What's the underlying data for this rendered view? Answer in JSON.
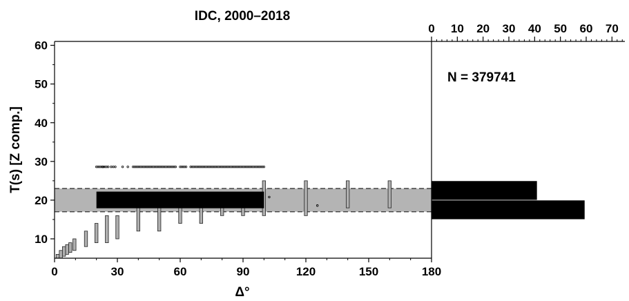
{
  "chart_data": [
    {
      "type": "scatter",
      "title": "IDC, 2000–2018",
      "xlabel": "Δ°",
      "ylabel": "T(s) [Z comp.]",
      "xlim": [
        0,
        180
      ],
      "ylim": [
        5,
        61
      ],
      "xticks": [
        0,
        30,
        60,
        90,
        120,
        150,
        180
      ],
      "yticks": [
        10,
        20,
        30,
        40,
        50,
        60
      ],
      "grid": false,
      "colors": {
        "band": "#b4b4b4",
        "box": "#b0b0b0",
        "dark": "#000000"
      },
      "shaded_band": {
        "y_min": 17,
        "y_max": 23,
        "x_min": 0,
        "x_max": 180
      },
      "dark_box": {
        "x_min": 20,
        "x_max": 100,
        "y_min": 17.9,
        "y_max": 22.2
      },
      "range_boxes": [
        {
          "x": 1.5,
          "y_min": 5,
          "y_max": 6
        },
        {
          "x": 3,
          "y_min": 5,
          "y_max": 7
        },
        {
          "x": 4.5,
          "y_min": 5.5,
          "y_max": 8
        },
        {
          "x": 6,
          "y_min": 6,
          "y_max": 8.5
        },
        {
          "x": 7.5,
          "y_min": 6.5,
          "y_max": 9
        },
        {
          "x": 9.5,
          "y_min": 7,
          "y_max": 10
        },
        {
          "x": 15,
          "y_min": 8,
          "y_max": 12
        },
        {
          "x": 20,
          "y_min": 9,
          "y_max": 14
        },
        {
          "x": 25,
          "y_min": 9,
          "y_max": 16
        },
        {
          "x": 30,
          "y_min": 10,
          "y_max": 16
        },
        {
          "x": 40,
          "y_min": 12,
          "y_max": 18
        },
        {
          "x": 50,
          "y_min": 12,
          "y_max": 20
        },
        {
          "x": 60,
          "y_min": 14,
          "y_max": 20
        },
        {
          "x": 70,
          "y_min": 14,
          "y_max": 22
        },
        {
          "x": 80,
          "y_min": 16,
          "y_max": 22
        },
        {
          "x": 90,
          "y_min": 16,
          "y_max": 22
        },
        {
          "x": 100,
          "y_min": 16,
          "y_max": 25
        },
        {
          "x": 120,
          "y_min": 16,
          "y_max": 25
        },
        {
          "x": 140,
          "y_min": 18,
          "y_max": 25
        },
        {
          "x": 160,
          "y_min": 18,
          "y_max": 25
        }
      ],
      "outlier_rows": [
        {
          "y": 28.6,
          "x_start": 20,
          "x_end": 26,
          "step": 0.7
        },
        {
          "y": 28.6,
          "x_start": 37.5,
          "x_end": 58,
          "step": 0.7
        },
        {
          "y": 28.6,
          "x_start": 60,
          "x_end": 63,
          "step": 0.7
        },
        {
          "x_start": 65,
          "x_end": 100.5,
          "y": 28.6,
          "step": 0.7
        }
      ],
      "outlier_points": [
        {
          "x": 23,
          "y": 28.6
        },
        {
          "x": 27,
          "y": 28.6
        },
        {
          "x": 28,
          "y": 28.6
        },
        {
          "x": 29,
          "y": 28.6
        },
        {
          "x": 32.5,
          "y": 28.6
        },
        {
          "x": 35,
          "y": 28.6
        },
        {
          "x": 102.5,
          "y": 20.8
        },
        {
          "x": 125.5,
          "y": 18.6
        }
      ]
    },
    {
      "type": "bar",
      "orientation": "horizontal",
      "annotation": "N = 379741",
      "xlim": [
        0,
        75
      ],
      "xticks": [
        0,
        10,
        20,
        30,
        40,
        50,
        60,
        70
      ],
      "minor_step": 2,
      "bars": [
        {
          "y_min": 20,
          "y_max": 25,
          "value": 41
        },
        {
          "y_min": 15,
          "y_max": 20,
          "value": 59.5
        }
      ]
    }
  ]
}
